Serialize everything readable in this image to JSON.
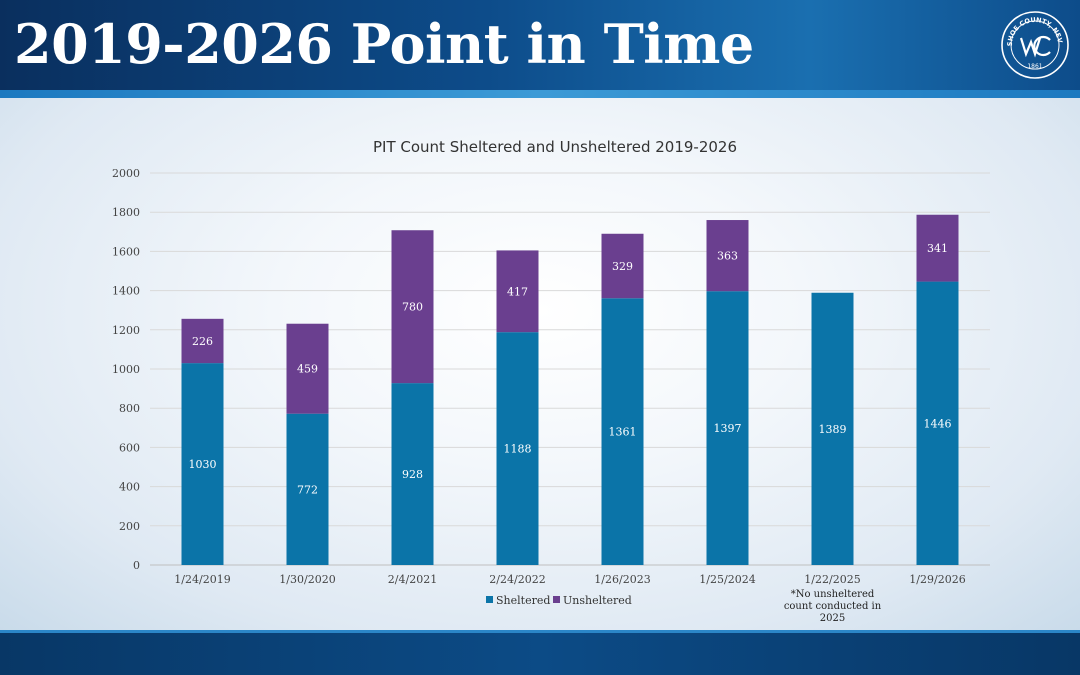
{
  "slide": {
    "title": "2019-2026 Point in Time",
    "seal_text_top": "WASHOE COUNTY, NEVADA",
    "seal_year": "1861"
  },
  "colors": {
    "sheltered": "#0b74a8",
    "unsheltered": "#6a3f8f",
    "gridline": "#d9d9d9"
  },
  "chart_data": {
    "type": "bar",
    "stacked": true,
    "title": "PIT Count Sheltered and Unsheltered 2019-2026",
    "categories": [
      "1/24/2019",
      "1/30/2020",
      "2/4/2021",
      "2/24/2022",
      "1/26/2023",
      "1/25/2024",
      "1/22/2025",
      "1/29/2026"
    ],
    "series": [
      {
        "name": "Sheltered",
        "values": [
          1030,
          772,
          928,
          1188,
          1361,
          1397,
          1389,
          1446
        ]
      },
      {
        "name": "Unsheltered",
        "values": [
          226,
          459,
          780,
          417,
          329,
          363,
          null,
          341
        ]
      }
    ],
    "ylim": [
      0,
      2000
    ],
    "yticks": [
      0,
      200,
      400,
      600,
      800,
      1000,
      1200,
      1400,
      1600,
      1800,
      2000
    ],
    "grid": true,
    "legend_position": "bottom",
    "annotations": [
      {
        "category": "1/22/2025",
        "lines": [
          "*No unsheltered",
          "count conducted in",
          "2025"
        ]
      }
    ]
  }
}
